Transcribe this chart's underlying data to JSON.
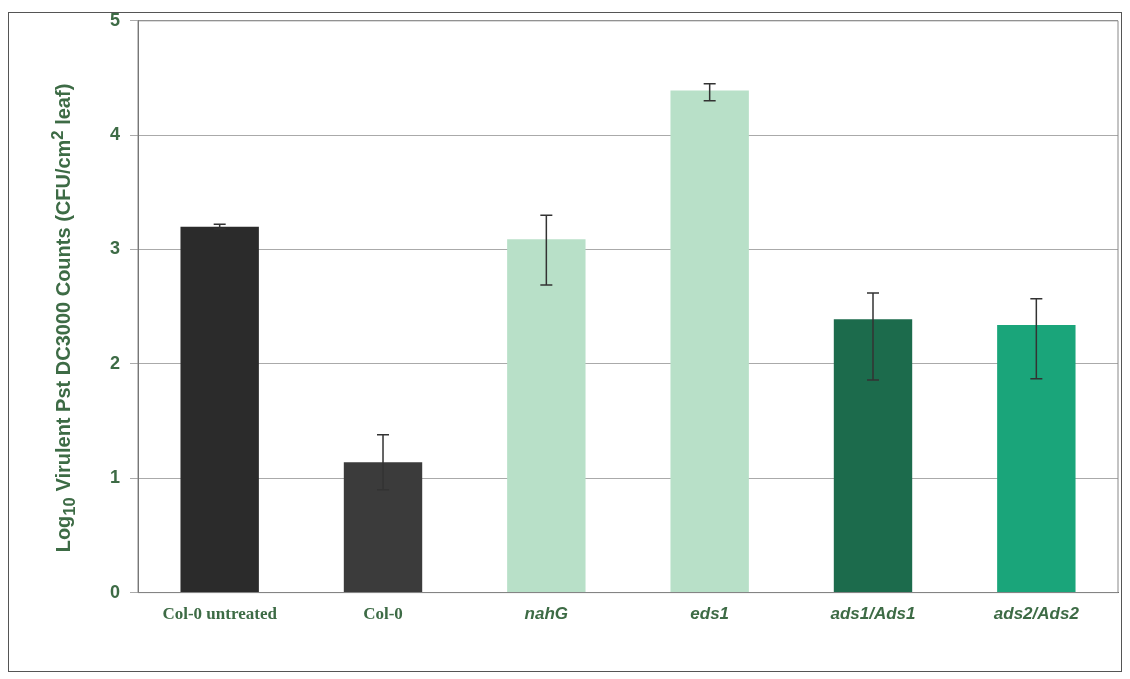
{
  "chart_data": {
    "type": "bar",
    "ylabel": "Log$_{10}$ Virulent Pst DC3000 Counts (CFU/cm$^{2}$ leaf)",
    "categories": [
      "Col-0 untreated",
      "Col-0",
      "nahG",
      "eds1",
      "ads1/Ads1",
      "ads2/Ads2"
    ],
    "values": [
      3.2,
      1.14,
      3.09,
      4.39,
      2.39,
      2.34
    ],
    "colors": [
      "#2b2b2b",
      "#3b3b3b",
      "#b8e0c8",
      "#b8e0c8",
      "#1c6b4c",
      "#1aa57a"
    ],
    "errors": [
      0.02,
      0.24,
      [
        2.69,
        3.3
      ],
      [
        4.3,
        4.45
      ],
      [
        1.86,
        2.62
      ],
      [
        1.87,
        2.57
      ]
    ],
    "ylim": [
      0,
      5
    ],
    "yticks": [
      0,
      1,
      2,
      3,
      4,
      5
    ],
    "grid": "y",
    "legend": false
  }
}
